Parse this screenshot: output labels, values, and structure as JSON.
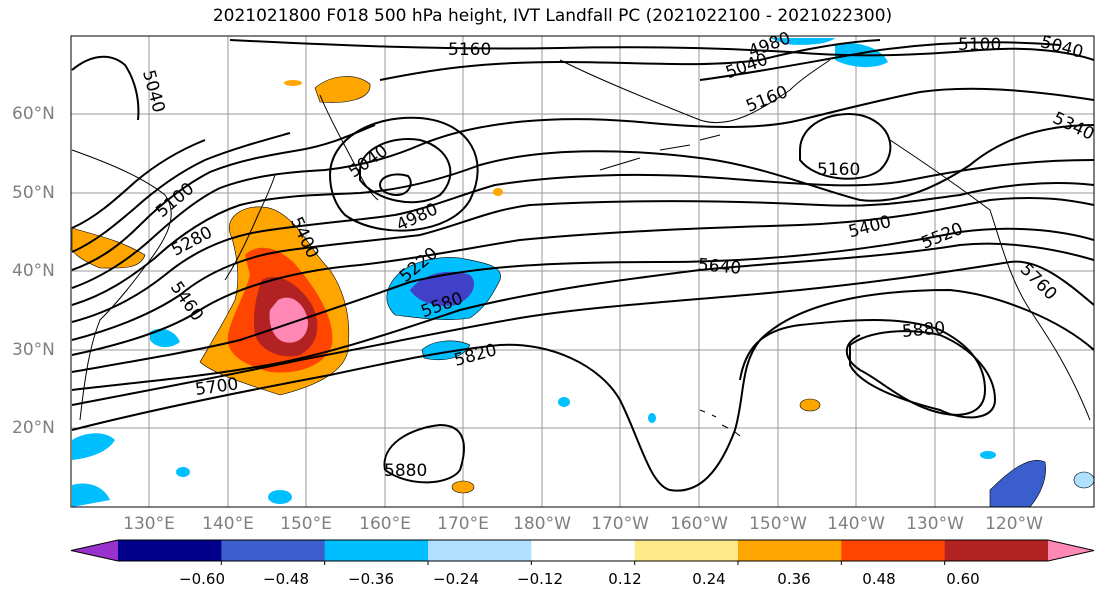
{
  "title": "2021021800 F018 500 hPa height, IVT Landfall PC (2021022100 - 2021022300)",
  "map": {
    "longitude_ticks": [
      "130°E",
      "140°E",
      "150°E",
      "160°E",
      "170°E",
      "180°W",
      "170°W",
      "160°W",
      "150°W",
      "140°W",
      "130°W",
      "120°W"
    ],
    "latitude_ticks": [
      "60°N",
      "50°N",
      "40°N",
      "30°N",
      "20°N"
    ],
    "contour_labels": [
      "5160",
      "4980",
      "5040",
      "5100",
      "5040",
      "5160",
      "5340",
      "5040",
      "5040",
      "5100",
      "4980",
      "5160",
      "5280",
      "5400",
      "5220",
      "5400",
      "5520",
      "5460",
      "5580",
      "5640",
      "5760",
      "5880",
      "5820",
      "5700",
      "5880"
    ],
    "shading_colors": {
      "neg_strong": "#4040c8",
      "neg_mid": "#00bfff",
      "neg_weak": "#b0e0ff",
      "pos_weak": "#ffe680",
      "pos_mid": "#ffa500",
      "pos_high": "#ff4500",
      "pos_vhigh": "#b22222",
      "pos_max": "#ff88b4"
    }
  },
  "colorbar": {
    "colors": [
      "#9932cc",
      "#00008b",
      "#3a5fcd",
      "#00bfff",
      "#b0e0ff",
      "#ffffff",
      "#ffea8a",
      "#ffa500",
      "#ff4500",
      "#b22222",
      "#ff88b4"
    ],
    "tick_labels": [
      "−0.60",
      "−0.48",
      "−0.36",
      "−0.24",
      "−0.12",
      "0.12",
      "0.24",
      "0.36",
      "0.48",
      "0.60"
    ]
  }
}
